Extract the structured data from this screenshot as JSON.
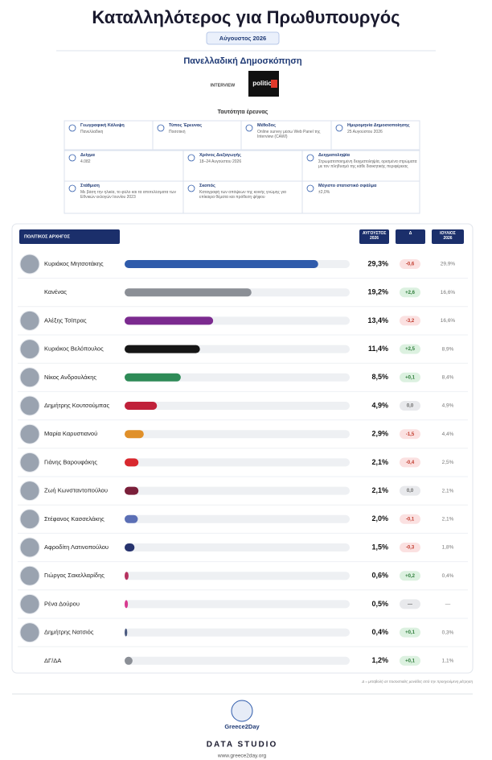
{
  "header": {
    "title": "Καταλληλότερος για Πρωθυπουργός",
    "date": "Αύγουστος 2026",
    "subtitle": "Πανελλαδική Δημοσκόπηση",
    "logos": [
      "INTERVIEW",
      "politic"
    ],
    "survey_title": "Ταυτότητα έρευνας"
  },
  "survey": [
    {
      "label": "Γεωγραφική Κάλυψη",
      "text": "Πανελλαδική"
    },
    {
      "label": "Τύπος Έρευνας",
      "text": "Ποσοτική"
    },
    {
      "label": "Μέθοδος",
      "text": "Online survey μέσω Web Panel της Interview (CAWI)"
    },
    {
      "label": "Ημερομηνία Δημοσιοποίησης",
      "text": "25 Αυγούστου 2026"
    },
    {
      "label": "Δείγμα",
      "text": "4.082"
    },
    {
      "label": "Χρόνος Διεξαγωγής",
      "text": "18–24 Αυγούστου 2026"
    },
    {
      "label": "Δειγματοληψία",
      "text": "Στρωματοποιημένη δειγματοληψία, ορισμένα στρώματα με τον πληθυσμό της κάθε διοικητικής περιφέρειας"
    },
    {
      "label": "Στάθμιση",
      "text": "Με βάση την ηλικία, το φύλο και τα αποτελέσματα των Εθνικών εκλογών Ιουνίου 2023"
    },
    {
      "label": "Σκοπός",
      "text": "Καταγραφή των απόψεων της κοινής γνώμης για επίκαιρα θέματα και πρόθεση ψήφου"
    },
    {
      "label": "Μέγιστο στατιστικό σφάλμα",
      "text": "±2,0%"
    }
  ],
  "chart_data": {
    "type": "bar",
    "orientation": "horizontal",
    "category_header": "ΠΟΛΙΤΙΚΟΣ ΑΡΧΗΓΟΣ",
    "categories": [
      "Κυριάκος Μητσοτάκης",
      "Κανένας",
      "Αλέξης Τσίπρας",
      "Κυριάκος Βελόπουλος",
      "Νίκος Ανδρουλάκης",
      "Δημήτρης Κουτσούμπας",
      "Μαρία Καρυστιανού",
      "Γιάνης Βαρουφάκης",
      "Ζωή Κωνσταντοπούλου",
      "Στέφανος Κασσελάκης",
      "Αφροδίτη Λατινοπούλου",
      "Γιώργος Σακελλαρίδης",
      "Ρένα Δούρου",
      "Δημήτρης Νατσιός",
      "ΔΓ/ΔΑ"
    ],
    "colors": [
      "#2f5bab",
      "#8b8f96",
      "#7b2a8f",
      "#161616",
      "#2e8b57",
      "#c0213a",
      "#e0902a",
      "#d8282e",
      "#7a1f3a",
      "#5b6fb5",
      "#27336e",
      "#b5305e",
      "#d83a8f",
      "#4a5a80",
      "#8b8f96"
    ],
    "series": [
      {
        "name": "ΑΥΓΟΥΣΤΟΣ 2026",
        "values": [
          29.3,
          19.2,
          13.4,
          11.4,
          8.5,
          4.9,
          2.9,
          2.1,
          2.1,
          2.0,
          1.5,
          0.6,
          0.5,
          0.4,
          1.2
        ],
        "value_labels": [
          "29,3%",
          "19,2%",
          "13,4%",
          "11,4%",
          "8,5%",
          "4,9%",
          "2,9%",
          "2,1%",
          "2,1%",
          "2,0%",
          "1,5%",
          "0,6%",
          "0,5%",
          "0,4%",
          "1,2%"
        ]
      },
      {
        "name": "Δ",
        "values": [
          -0.6,
          2.6,
          -3.2,
          2.5,
          0.1,
          0,
          -1.5,
          -0.4,
          0,
          -0.1,
          -0.3,
          0.2,
          null,
          0.1,
          0.1
        ],
        "value_labels": [
          "-0,6",
          "+2,6",
          "-3,2",
          "+2,5",
          "+0,1",
          "0,0",
          "-1,5",
          "-0,4",
          "0,0",
          "-0,1",
          "-0,3",
          "+0,2",
          "—",
          "+0,1",
          "+0,1"
        ]
      },
      {
        "name": "ΙΟΥΛΙΟΣ 2026",
        "values": [
          29.9,
          16.6,
          16.6,
          8.9,
          8.4,
          4.9,
          4.4,
          2.5,
          2.1,
          2.1,
          1.8,
          0.4,
          null,
          0.3,
          1.1
        ],
        "value_labels": [
          "29,9%",
          "16,6%",
          "16,6%",
          "8,9%",
          "8,4%",
          "4,9%",
          "4,4%",
          "2,5%",
          "2,1%",
          "2,1%",
          "1,8%",
          "0,4%",
          "—",
          "0,3%",
          "1,1%"
        ]
      }
    ],
    "footnote": "Δ = μεταβολή σε ποσοστιαίες μονάδες από την προηγούμενη μέτρηση"
  },
  "footer": {
    "logo": "Greece2Day",
    "brand": "DATA STUDIO",
    "url": "www.greece2day.org"
  }
}
